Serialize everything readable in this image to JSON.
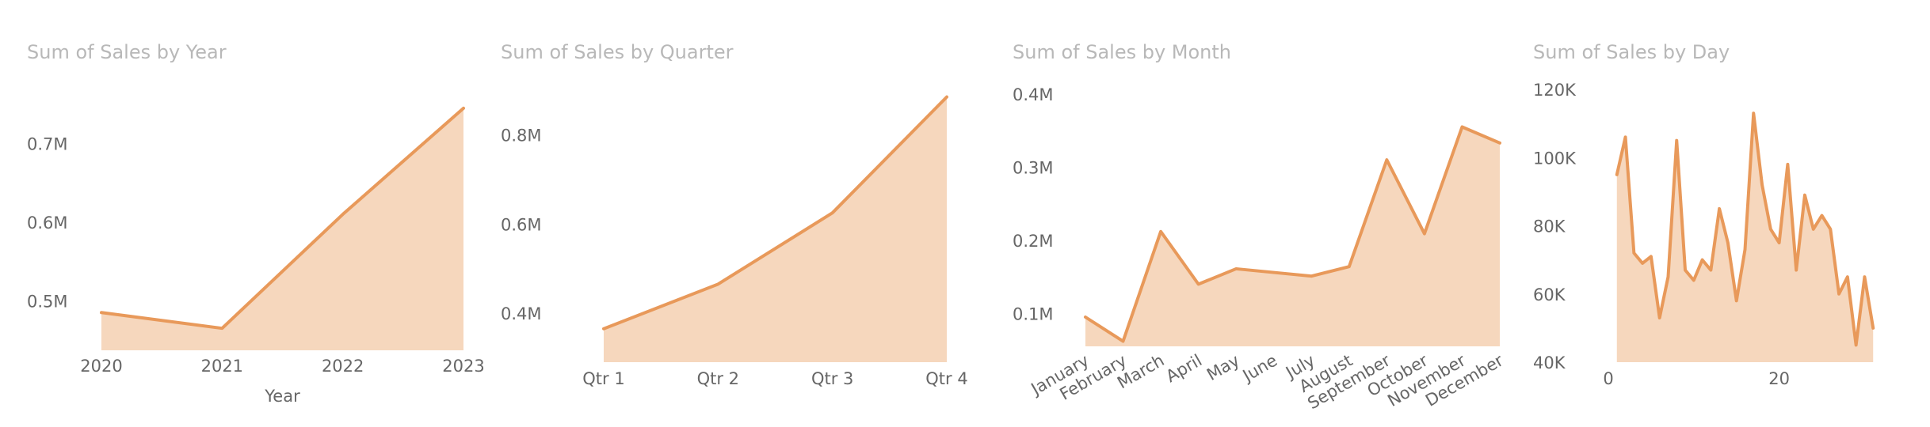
{
  "theme": {
    "line": "#E8995A",
    "fill": "#F6D7BD",
    "title": "#b8b8b8",
    "text": "#666666"
  },
  "chart_data": [
    {
      "type": "area",
      "title": "Sum of Sales by Year",
      "xlabel": "Year",
      "ylabel": "",
      "categories": [
        "2020",
        "2021",
        "2022",
        "2023"
      ],
      "values": [
        485000,
        465000,
        610000,
        745000
      ],
      "ylim": [
        437000,
        765000
      ],
      "yticks": [
        500000,
        600000,
        700000
      ],
      "ytick_labels": [
        "0.5M",
        "0.6M",
        "0.7M"
      ],
      "grid": false,
      "legend": "none"
    },
    {
      "type": "area",
      "title": "Sum of Sales by Quarter",
      "xlabel": "",
      "ylabel": "",
      "categories": [
        "Qtr 1",
        "Qtr 2",
        "Qtr 3",
        "Qtr 4"
      ],
      "values": [
        365000,
        465000,
        625000,
        885000
      ],
      "ylim": [
        290000,
        895000
      ],
      "yticks": [
        400000,
        600000,
        800000
      ],
      "ytick_labels": [
        "0.4M",
        "0.6M",
        "0.8M"
      ],
      "grid": false,
      "legend": "none"
    },
    {
      "type": "area",
      "title": "Sum of Sales by Month",
      "xlabel": "",
      "ylabel": "",
      "categories": [
        "January",
        "February",
        "March",
        "April",
        "May",
        "June",
        "July",
        "August",
        "September",
        "October",
        "November",
        "December"
      ],
      "values": [
        95000,
        62000,
        212000,
        140000,
        161000,
        156000,
        151000,
        164000,
        310000,
        209000,
        355000,
        333000
      ],
      "ylim": [
        55000,
        402000
      ],
      "yticks": [
        100000,
        200000,
        300000,
        400000
      ],
      "ytick_labels": [
        "0.1M",
        "0.2M",
        "0.3M",
        "0.4M"
      ],
      "grid": false,
      "legend": "none"
    },
    {
      "type": "area",
      "title": "Sum of Sales by Day",
      "xlabel": "",
      "ylabel": "",
      "x": [
        1,
        2,
        3,
        4,
        5,
        6,
        7,
        8,
        9,
        10,
        11,
        12,
        13,
        14,
        15,
        16,
        17,
        18,
        19,
        20,
        21,
        22,
        23,
        24,
        25,
        26,
        27,
        28,
        29,
        30,
        31
      ],
      "values": [
        95000,
        106000,
        72000,
        69000,
        71000,
        53000,
        65000,
        105000,
        67000,
        64000,
        70000,
        67000,
        85000,
        75000,
        58000,
        73000,
        113000,
        92000,
        79000,
        75000,
        98000,
        67000,
        89000,
        79000,
        83000,
        79000,
        60000,
        65000,
        45000,
        65000,
        50000
      ],
      "xlim": [
        0,
        32
      ],
      "xticks": [
        0,
        20
      ],
      "ylim": [
        40000,
        120000
      ],
      "yticks": [
        40000,
        60000,
        80000,
        100000,
        120000
      ],
      "ytick_labels": [
        "40K",
        "60K",
        "80K",
        "100K",
        "120K"
      ],
      "grid": false,
      "legend": "none"
    }
  ]
}
